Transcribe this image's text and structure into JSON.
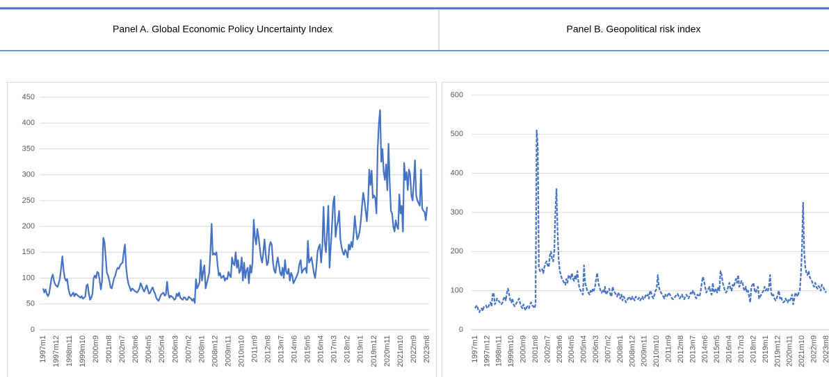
{
  "chart_data": [
    {
      "type": "line",
      "title": "Panel A. Global Economic Policy Uncertainty Index",
      "color": "#4472c4",
      "line_style": "solid",
      "grid": true,
      "ylim": [
        0,
        450
      ],
      "yticks": [
        0,
        50,
        100,
        150,
        200,
        250,
        300,
        350,
        400,
        450
      ],
      "categories": [
        "1997m1",
        null,
        null,
        null,
        null,
        null,
        null,
        null,
        null,
        null,
        null,
        "1997m12",
        null,
        null,
        null,
        null,
        null,
        null,
        null,
        null,
        null,
        null,
        "1998m11",
        null,
        null,
        null,
        null,
        null,
        null,
        null,
        null,
        null,
        null,
        "1999m10",
        null,
        null,
        null,
        null,
        null,
        null,
        null,
        null,
        null,
        null,
        "2000m9",
        null,
        null,
        null,
        null,
        null,
        null,
        null,
        null,
        null,
        null,
        "2001m8",
        null,
        null,
        null,
        null,
        null,
        null,
        null,
        null,
        null,
        null,
        "2002m7",
        null,
        null,
        null,
        null,
        null,
        null,
        null,
        null,
        null,
        null,
        "2003m6",
        null,
        null,
        null,
        null,
        null,
        null,
        null,
        null,
        null,
        null,
        "2004m5",
        null,
        null,
        null,
        null,
        null,
        null,
        null,
        null,
        null,
        null,
        "2005m4",
        null,
        null,
        null,
        null,
        null,
        null,
        null,
        null,
        null,
        null,
        "2006m3",
        null,
        null,
        null,
        null,
        null,
        null,
        null,
        null,
        null,
        null,
        "2007m2",
        null,
        null,
        null,
        null,
        null,
        null,
        null,
        null,
        null,
        null,
        "2008m1",
        null,
        null,
        null,
        null,
        null,
        null,
        null,
        null,
        null,
        null,
        "2008m12",
        null,
        null,
        null,
        null,
        null,
        null,
        null,
        null,
        null,
        null,
        "2009m11",
        null,
        null,
        null,
        null,
        null,
        null,
        null,
        null,
        null,
        null,
        "2010m10",
        null,
        null,
        null,
        null,
        null,
        null,
        null,
        null,
        null,
        null,
        "2011m9",
        null,
        null,
        null,
        null,
        null,
        null,
        null,
        null,
        null,
        null,
        "2012m8",
        null,
        null,
        null,
        null,
        null,
        null,
        null,
        null,
        null,
        null,
        "2013m7",
        null,
        null,
        null,
        null,
        null,
        null,
        null,
        null,
        null,
        null,
        "2014m6",
        null,
        null,
        null,
        null,
        null,
        null,
        null,
        null,
        null,
        null,
        "2015m5",
        null,
        null,
        null,
        null,
        null,
        null,
        null,
        null,
        null,
        null,
        "2016m4",
        null,
        null,
        null,
        null,
        null,
        null,
        null,
        null,
        null,
        null,
        "2017m3",
        null,
        null,
        null,
        null,
        null,
        null,
        null,
        null,
        null,
        null,
        "2018m2",
        null,
        null,
        null,
        null,
        null,
        null,
        null,
        null,
        null,
        null,
        "2019m1",
        null,
        null,
        null,
        null,
        null,
        null,
        null,
        null,
        null,
        null,
        "2019m12",
        null,
        null,
        null,
        null,
        null,
        null,
        null,
        null,
        null,
        null,
        "2020m11",
        null,
        null,
        null,
        null,
        null,
        null,
        null,
        null,
        null,
        null,
        "2021m10",
        null,
        null,
        null,
        null,
        null,
        null,
        null,
        null,
        null,
        null,
        "2022m9",
        null,
        null,
        null,
        null,
        null,
        null,
        null,
        null,
        null,
        null,
        "2023m8"
      ],
      "values": [
        80,
        72,
        78,
        70,
        65,
        70,
        85,
        100,
        107,
        95,
        88,
        85,
        83,
        90,
        100,
        120,
        142,
        115,
        100,
        95,
        98,
        80,
        70,
        65,
        68,
        72,
        65,
        70,
        68,
        66,
        64,
        62,
        65,
        60,
        62,
        64,
        85,
        88,
        70,
        58,
        62,
        70,
        100,
        105,
        100,
        112,
        110,
        95,
        78,
        95,
        178,
        170,
        140,
        110,
        105,
        95,
        82,
        80,
        90,
        100,
        105,
        115,
        120,
        118,
        125,
        128,
        130,
        150,
        165,
        120,
        100,
        88,
        82,
        75,
        80,
        78,
        75,
        74,
        72,
        75,
        80,
        90,
        85,
        78,
        74,
        80,
        86,
        78,
        70,
        72,
        78,
        82,
        75,
        70,
        62,
        58,
        56,
        62,
        68,
        70,
        72,
        66,
        68,
        93,
        70,
        62,
        66,
        64,
        62,
        58,
        60,
        70,
        65,
        72,
        62,
        60,
        58,
        63,
        62,
        58,
        58,
        64,
        62,
        60,
        56,
        60,
        52,
        98,
        80,
        85,
        92,
        135,
        95,
        112,
        125,
        80,
        90,
        100,
        110,
        150,
        205,
        145,
        148,
        145,
        150,
        125,
        105,
        110,
        100,
        102,
        105,
        95,
        100,
        98,
        112,
        105,
        102,
        140,
        128,
        125,
        150,
        120,
        135,
        110,
        115,
        140,
        95,
        130,
        100,
        115,
        120,
        90,
        125,
        110,
        130,
        213,
        180,
        165,
        195,
        180,
        160,
        140,
        130,
        150,
        175,
        145,
        125,
        130,
        160,
        170,
        165,
        130,
        115,
        110,
        128,
        140,
        125,
        110,
        105,
        120,
        100,
        135,
        112,
        108,
        118,
        95,
        110,
        105,
        90,
        95,
        100,
        105,
        112,
        128,
        135,
        110,
        115,
        118,
        120,
        110,
        172,
        130,
        135,
        140,
        125,
        110,
        100,
        120,
        150,
        160,
        165,
        130,
        160,
        238,
        170,
        150,
        190,
        240,
        120,
        160,
        200,
        245,
        258,
        180,
        200,
        210,
        230,
        175,
        160,
        150,
        145,
        155,
        150,
        140,
        165,
        155,
        170,
        160,
        185,
        220,
        195,
        175,
        180,
        190,
        210,
        240,
        265,
        250,
        230,
        210,
        245,
        310,
        280,
        308,
        255,
        260,
        255,
        225,
        350,
        400,
        425,
        325,
        350,
        305,
        290,
        320,
        270,
        360,
        285,
        230,
        225,
        200,
        190,
        212,
        200,
        195,
        262,
        225,
        240,
        190,
        323,
        290,
        305,
        270,
        310,
        300,
        260,
        250,
        285,
        328,
        260,
        250,
        245,
        240,
        310,
        235,
        230,
        228,
        212,
        238
      ]
    },
    {
      "type": "line",
      "title": "Panel B. Geopolitical risk index",
      "color": "#4472c4",
      "line_style": "dashed",
      "grid": true,
      "ylim": [
        0,
        600
      ],
      "yticks": [
        0,
        100,
        200,
        300,
        400,
        500,
        600
      ],
      "categories": [
        "1997m1",
        null,
        null,
        null,
        null,
        null,
        null,
        null,
        null,
        null,
        null,
        "1997m12",
        null,
        null,
        null,
        null,
        null,
        null,
        null,
        null,
        null,
        null,
        "1998m11",
        null,
        null,
        null,
        null,
        null,
        null,
        null,
        null,
        null,
        null,
        "1999m10",
        null,
        null,
        null,
        null,
        null,
        null,
        null,
        null,
        null,
        null,
        "2000m9",
        null,
        null,
        null,
        null,
        null,
        null,
        null,
        null,
        null,
        null,
        "2001m8",
        null,
        null,
        null,
        null,
        null,
        null,
        null,
        null,
        null,
        null,
        "2002m7",
        null,
        null,
        null,
        null,
        null,
        null,
        null,
        null,
        null,
        null,
        "2003m6",
        null,
        null,
        null,
        null,
        null,
        null,
        null,
        null,
        null,
        null,
        "2004m5",
        null,
        null,
        null,
        null,
        null,
        null,
        null,
        null,
        null,
        null,
        "2005m4",
        null,
        null,
        null,
        null,
        null,
        null,
        null,
        null,
        null,
        null,
        "2006m3",
        null,
        null,
        null,
        null,
        null,
        null,
        null,
        null,
        null,
        null,
        "2007m2",
        null,
        null,
        null,
        null,
        null,
        null,
        null,
        null,
        null,
        null,
        "2008m1",
        null,
        null,
        null,
        null,
        null,
        null,
        null,
        null,
        null,
        null,
        "2008m12",
        null,
        null,
        null,
        null,
        null,
        null,
        null,
        null,
        null,
        null,
        "2009m11",
        null,
        null,
        null,
        null,
        null,
        null,
        null,
        null,
        null,
        null,
        "2010m10",
        null,
        null,
        null,
        null,
        null,
        null,
        null,
        null,
        null,
        null,
        "2011m9",
        null,
        null,
        null,
        null,
        null,
        null,
        null,
        null,
        null,
        null,
        "2012m8",
        null,
        null,
        null,
        null,
        null,
        null,
        null,
        null,
        null,
        null,
        "2013m7",
        null,
        null,
        null,
        null,
        null,
        null,
        null,
        null,
        null,
        null,
        "2014m6",
        null,
        null,
        null,
        null,
        null,
        null,
        null,
        null,
        null,
        null,
        "2015m5",
        null,
        null,
        null,
        null,
        null,
        null,
        null,
        null,
        null,
        null,
        "2016m4",
        null,
        null,
        null,
        null,
        null,
        null,
        null,
        null,
        null,
        null,
        "2017m3",
        null,
        null,
        null,
        null,
        null,
        null,
        null,
        null,
        null,
        null,
        "2018m2",
        null,
        null,
        null,
        null,
        null,
        null,
        null,
        null,
        null,
        null,
        "2019m1",
        null,
        null,
        null,
        null,
        null,
        null,
        null,
        null,
        null,
        null,
        "2019m12",
        null,
        null,
        null,
        null,
        null,
        null,
        null,
        null,
        null,
        null,
        "2020m11",
        null,
        null,
        null,
        null,
        null,
        null,
        null,
        null,
        null,
        null,
        "2021m10",
        null,
        null,
        null,
        null,
        null,
        null,
        null,
        null,
        null,
        null,
        "2022m9",
        null,
        null,
        null,
        null,
        null,
        null,
        null,
        null,
        null,
        null,
        "2023m8"
      ],
      "values": [
        55,
        60,
        62,
        50,
        45,
        52,
        55,
        48,
        58,
        60,
        62,
        55,
        58,
        65,
        70,
        60,
        90,
        95,
        65,
        70,
        80,
        75,
        72,
        68,
        65,
        70,
        80,
        85,
        75,
        95,
        105,
        90,
        75,
        70,
        80,
        65,
        60,
        65,
        70,
        75,
        80,
        68,
        60,
        55,
        65,
        55,
        50,
        58,
        60,
        55,
        65,
        70,
        62,
        60,
        55,
        65,
        510,
        470,
        160,
        150,
        150,
        155,
        145,
        160,
        170,
        175,
        165,
        160,
        190,
        200,
        180,
        175,
        200,
        300,
        360,
        250,
        180,
        150,
        140,
        130,
        125,
        120,
        115,
        130,
        120,
        140,
        135,
        130,
        145,
        130,
        125,
        140,
        130,
        150,
        120,
        105,
        100,
        95,
        90,
        165,
        120,
        110,
        100,
        95,
        90,
        100,
        95,
        105,
        100,
        110,
        130,
        145,
        120,
        110,
        100,
        95,
        100,
        95,
        110,
        90,
        95,
        100,
        105,
        90,
        85,
        110,
        100,
        95,
        90,
        85,
        95,
        90,
        80,
        90,
        75,
        85,
        80,
        70,
        75,
        80,
        85,
        80,
        75,
        85,
        80,
        75,
        85,
        80,
        78,
        82,
        75,
        80,
        85,
        78,
        80,
        88,
        85,
        90,
        80,
        100,
        95,
        85,
        80,
        90,
        100,
        105,
        140,
        110,
        100,
        95,
        90,
        85,
        80,
        90,
        85,
        88,
        95,
        90,
        85,
        80,
        78,
        82,
        85,
        90,
        92,
        85,
        80,
        85,
        90,
        82,
        78,
        85,
        90,
        85,
        80,
        88,
        95,
        90,
        100,
        95,
        85,
        80,
        90,
        88,
        85,
        100,
        120,
        135,
        125,
        110,
        95,
        100,
        105,
        110,
        95,
        90,
        120,
        95,
        100,
        105,
        95,
        110,
        100,
        150,
        140,
        120,
        110,
        100,
        95,
        100,
        110,
        120,
        105,
        100,
        115,
        110,
        120,
        130,
        120,
        140,
        110,
        115,
        125,
        120,
        105,
        100,
        110,
        95,
        100,
        85,
        70,
        110,
        115,
        120,
        100,
        95,
        105,
        110,
        80,
        85,
        90,
        95,
        100,
        110,
        100,
        105,
        100,
        110,
        140,
        95,
        85,
        90,
        80,
        75,
        80,
        90,
        100,
        80,
        85,
        75,
        70,
        72,
        80,
        75,
        70,
        78,
        75,
        80,
        90,
        65,
        80,
        95,
        90,
        85,
        95,
        100,
        140,
        210,
        325,
        200,
        160,
        145,
        140,
        150,
        135,
        130,
        125,
        115,
        110,
        120,
        110,
        105,
        112,
        108,
        100,
        115,
        110,
        105,
        98,
        95
      ]
    }
  ]
}
